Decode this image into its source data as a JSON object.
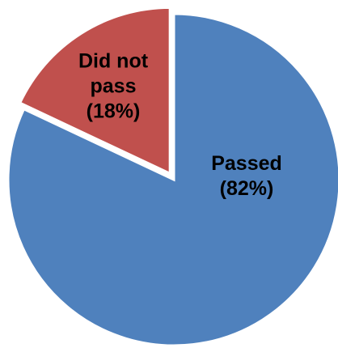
{
  "chart_data": {
    "type": "pie",
    "categories": [
      "Passed",
      "Did not pass"
    ],
    "values": [
      82,
      18
    ],
    "value_labels": [
      "(82%)",
      "(18%)"
    ],
    "colors": [
      "#4f81bd",
      "#c0504d"
    ],
    "start_angle": 0,
    "direction": "clockwise"
  }
}
